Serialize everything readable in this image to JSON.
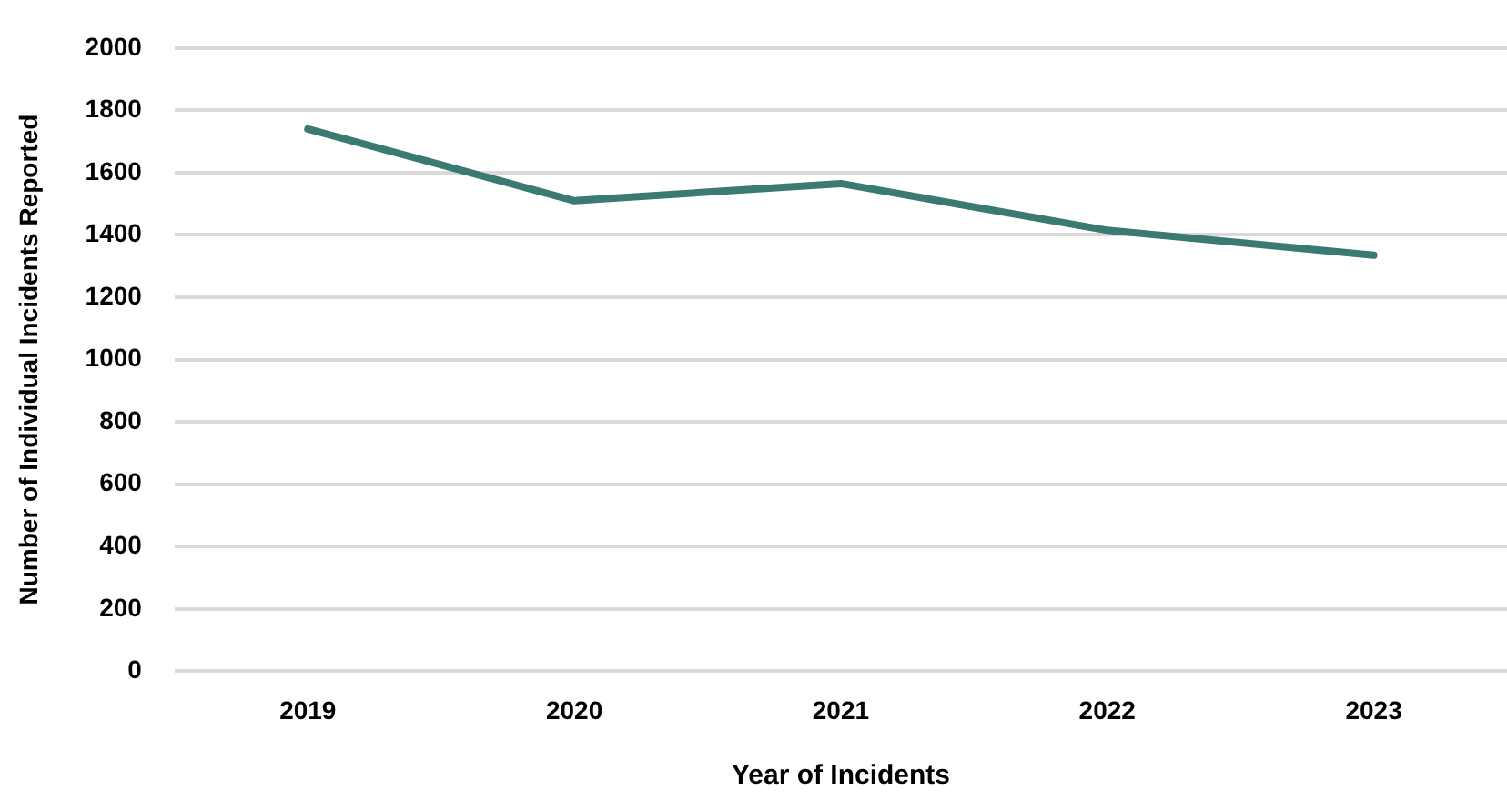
{
  "chart_data": {
    "type": "line",
    "xlabel": "Year of Incidents",
    "ylabel": "Number of Individual Incidents Reported",
    "categories": [
      "2019",
      "2020",
      "2021",
      "2022",
      "2023"
    ],
    "series": [
      {
        "color": "#3a7a72",
        "values": [
          1740,
          1510,
          1565,
          1415,
          1335
        ]
      }
    ],
    "ylim": [
      0,
      2000
    ],
    "yticks": [
      0,
      200,
      400,
      600,
      800,
      1000,
      1200,
      1400,
      1600,
      1800,
      2000
    ],
    "grid": "y",
    "legend": false,
    "marker": "none",
    "line_style": "solid"
  }
}
